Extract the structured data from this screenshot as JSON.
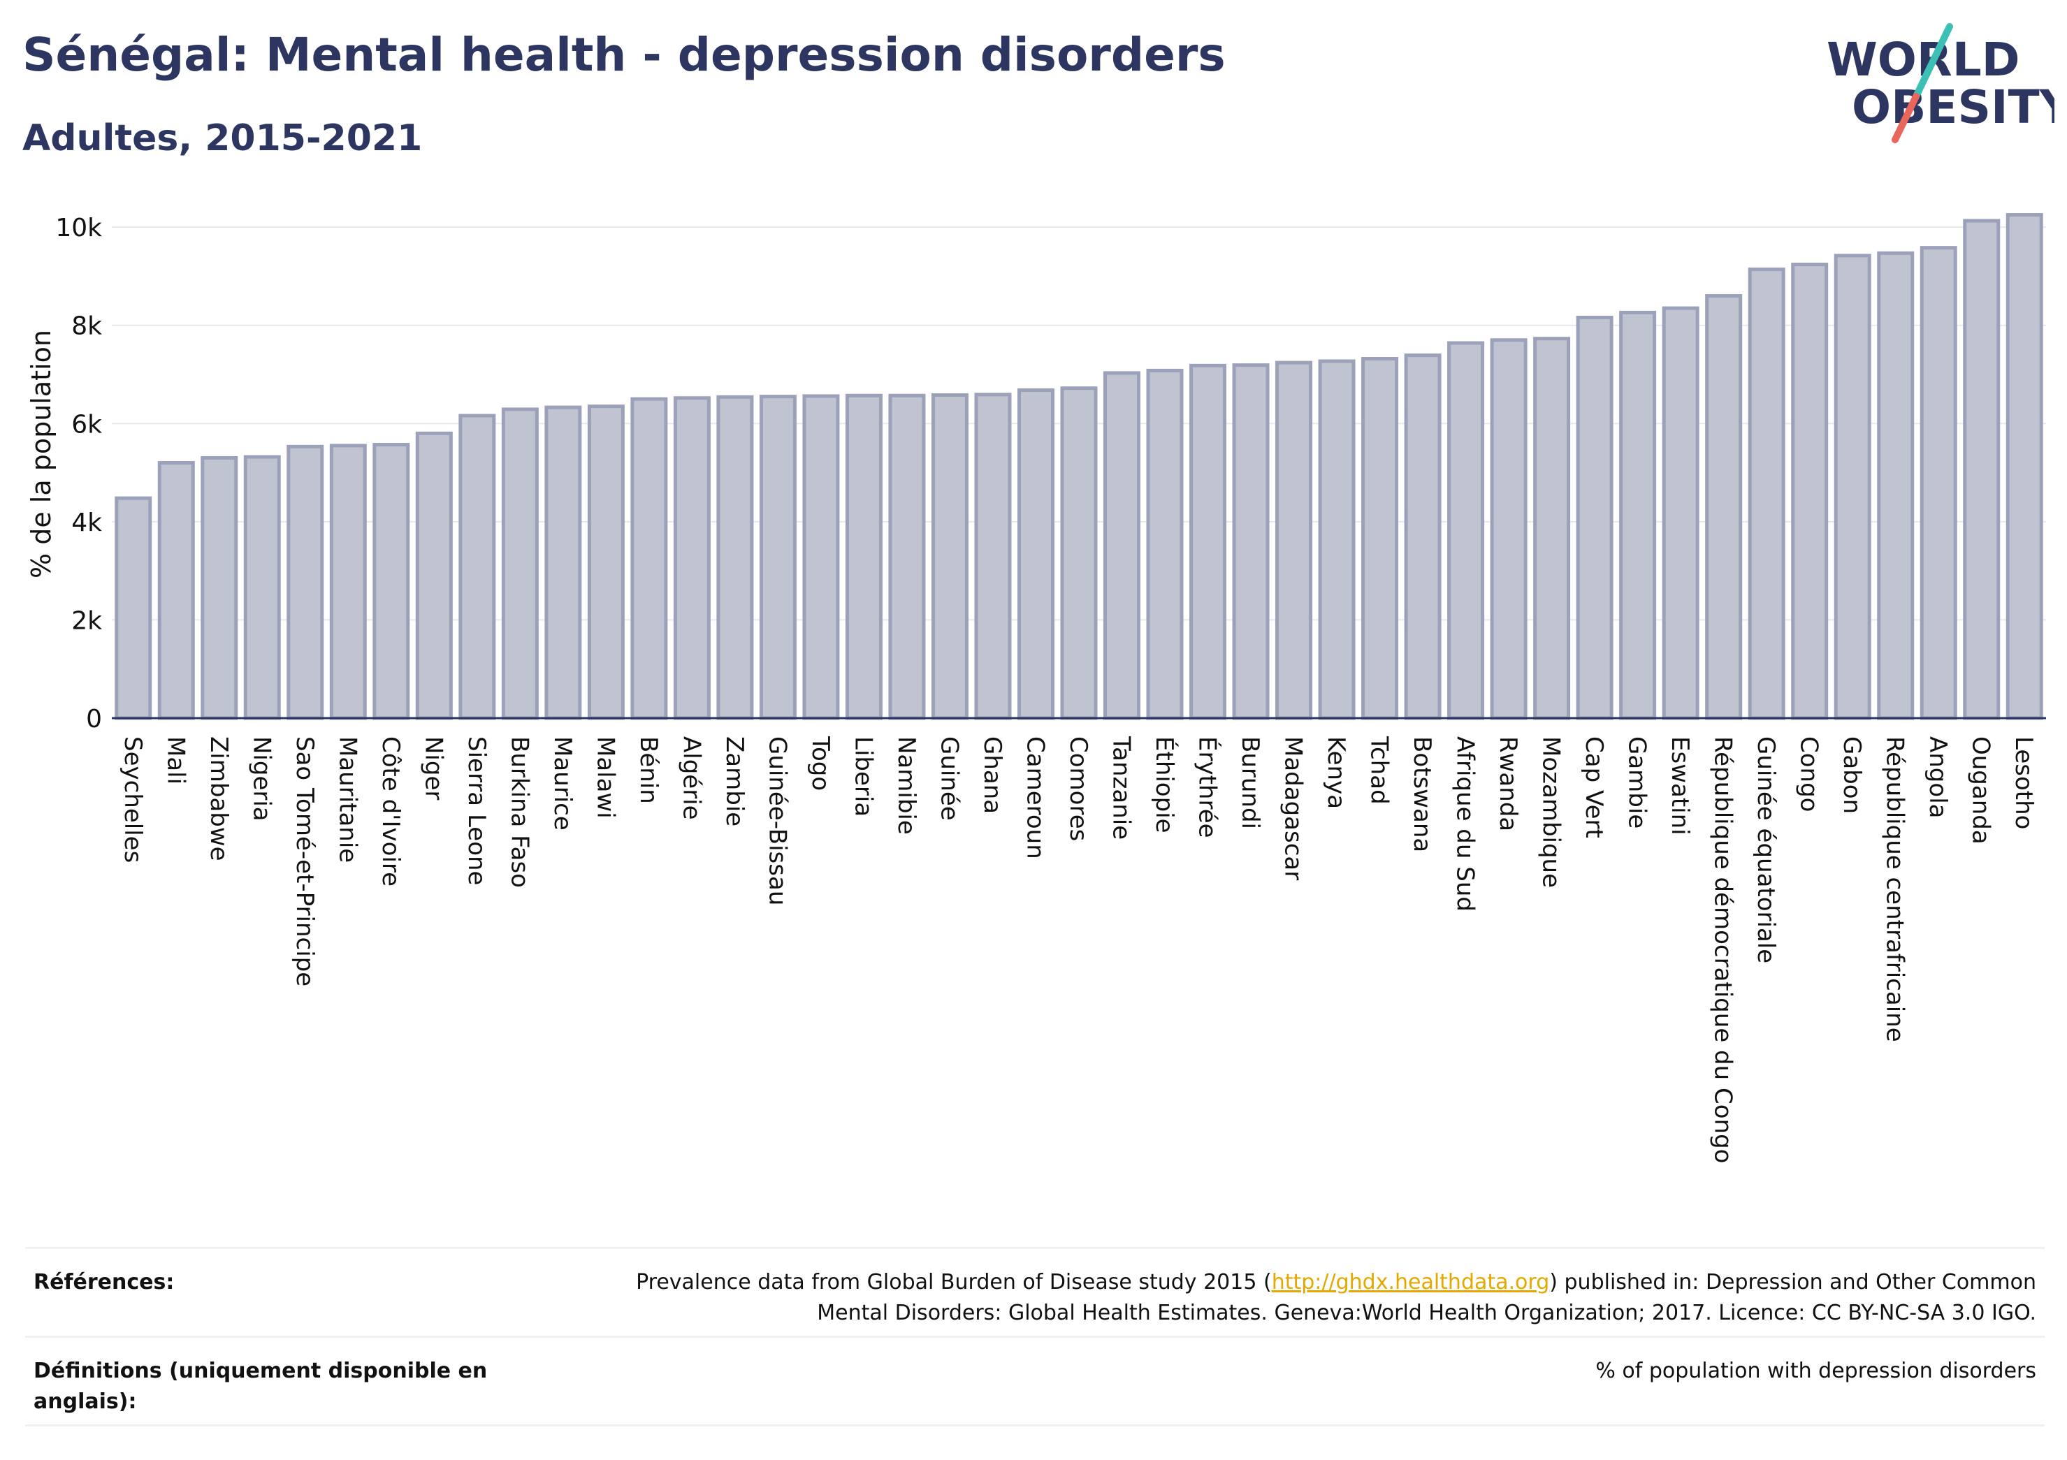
{
  "title": "Sénégal: Mental health - depression disorders",
  "subtitle": "Adultes, 2015-2021",
  "logo": {
    "line1": "WORLD",
    "line2": "OBESITY",
    "colors": {
      "text": "#2d3561",
      "slash_top": "#3cbfb4",
      "slash_bottom": "#e8665c"
    }
  },
  "colors": {
    "bar_fill": "#c0c4d1",
    "bar_stroke": "#9ba1b8",
    "axis_text": "#111111",
    "grid": "#e6e8ee",
    "title": "#2d3561",
    "link": "#e5a800"
  },
  "chart_data": {
    "type": "bar",
    "ylabel": "% de la population",
    "xlabel": "",
    "ylim": [
      0,
      10500
    ],
    "yticks": [
      0,
      2000,
      4000,
      6000,
      8000,
      10000
    ],
    "ytick_labels": [
      "0",
      "2k",
      "4k",
      "6k",
      "8k",
      "10k"
    ],
    "grid": true,
    "categories": [
      "Seychelles",
      "Mali",
      "Zimbabwe",
      "Nigeria",
      "Sao Tomé-et-Principe",
      "Mauritanie",
      "Côte d'Ivoire",
      "Niger",
      "Sierra Leone",
      "Burkina Faso",
      "Maurice",
      "Malawi",
      "Bénin",
      "Algérie",
      "Zambie",
      "Guinée-Bissau",
      "Togo",
      "Liberia",
      "Namibie",
      "Guinée",
      "Ghana",
      "Cameroun",
      "Comores",
      "Tanzanie",
      "Éthiopie",
      "Érythrée",
      "Burundi",
      "Madagascar",
      "Kenya",
      "Tchad",
      "Botswana",
      "Afrique du Sud",
      "Rwanda",
      "Mozambique",
      "Cap Vert",
      "Gambie",
      "Eswatini",
      "République démocratique du Congo",
      "Guinée équatoriale",
      "Congo",
      "Gabon",
      "République centrafricaine",
      "Angola",
      "Ouganda",
      "Lesotho"
    ],
    "values": [
      4480,
      5200,
      5300,
      5320,
      5530,
      5550,
      5570,
      5800,
      6160,
      6290,
      6330,
      6350,
      6500,
      6520,
      6540,
      6550,
      6560,
      6570,
      6570,
      6580,
      6590,
      6680,
      6720,
      7030,
      7080,
      7180,
      7190,
      7240,
      7270,
      7320,
      7390,
      7640,
      7700,
      7730,
      8160,
      8260,
      8350,
      8600,
      9140,
      9240,
      9420,
      9470,
      9580,
      10130,
      10250
    ]
  },
  "references": {
    "label": "Références:",
    "text_before": "Prevalence data from Global Burden of Disease study 2015 (",
    "link": "http://ghdx.healthdata.org",
    "text_after": ") published in: Depression and Other Common Mental Disorders: Global Health Estimates. Geneva:World Health Organization; 2017. Licence: CC BY-NC-SA 3.0 IGO."
  },
  "definitions": {
    "label": "Définitions (uniquement disponible en anglais):",
    "text": "% of population with depression disorders"
  }
}
